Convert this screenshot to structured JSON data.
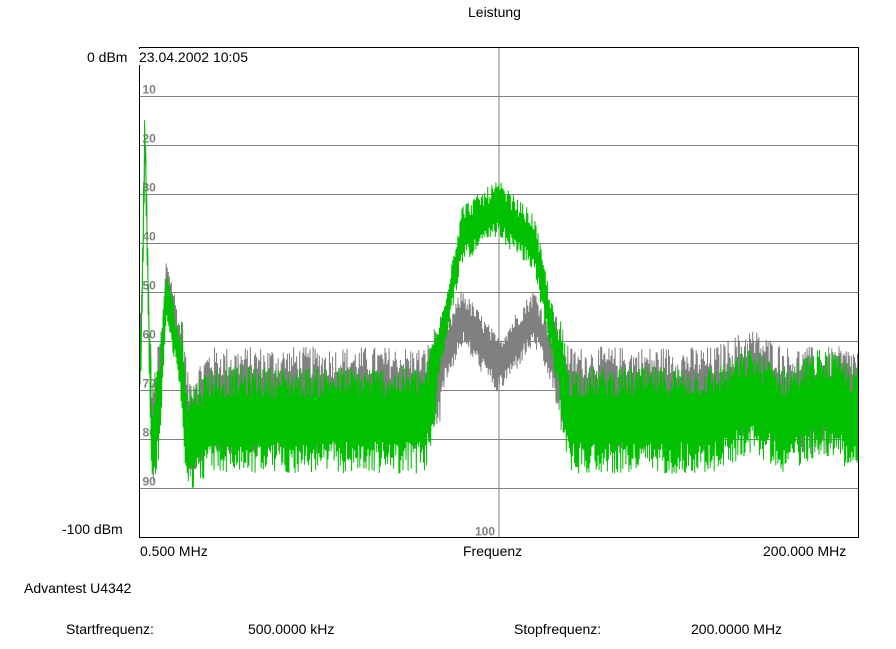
{
  "chart_data": {
    "type": "line",
    "title": "Leistung",
    "xlabel": "Frequenz",
    "ylabel": "",
    "x_start_label": "0.500 MHz",
    "x_end_label": "200.000 MHz",
    "xlim": [
      0.5,
      200.0
    ],
    "x_unit": "MHz",
    "ylim": [
      -100,
      0
    ],
    "y_unit": "dBm",
    "y_top_label": "0 dBm",
    "y_bottom_label": "-100 dBm",
    "timestamp": "23.04.2002 10:05",
    "y_tick_labels": [
      "10",
      "20",
      "30",
      "40",
      "50",
      "60",
      "70",
      "80",
      "90"
    ],
    "center_tick_label": "100",
    "grid": true,
    "series": [
      {
        "color": "#808080",
        "x": [
          0.5,
          1.0,
          2.0,
          3.0,
          4.0,
          6.0,
          8.0,
          10.0,
          12.0,
          14.0,
          20.0,
          40.0,
          60.0,
          80.0,
          90.0,
          100.0,
          110.0,
          120.0,
          140.0,
          160.0,
          170.0,
          180.0,
          190.0,
          200.0
        ],
        "values": [
          -60,
          -58,
          -18,
          -52,
          -80,
          -70,
          -48,
          -55,
          -63,
          -78,
          -72,
          -72,
          -72,
          -72,
          -55,
          -65,
          -55,
          -72,
          -72,
          -72,
          -68,
          -72,
          -72,
          -72
        ]
      },
      {
        "color": "#00c000",
        "x": [
          0.5,
          1.0,
          2.0,
          3.0,
          4.0,
          6.0,
          8.0,
          10.0,
          12.0,
          14.0,
          20.0,
          40.0,
          60.0,
          80.0,
          90.0,
          100.0,
          110.0,
          120.0,
          140.0,
          160.0,
          170.0,
          180.0,
          190.0,
          200.0
        ],
        "values": [
          -65,
          -60,
          -16,
          -55,
          -83,
          -72,
          -50,
          -58,
          -65,
          -80,
          -76,
          -76,
          -76,
          -76,
          -38,
          -33,
          -40,
          -76,
          -76,
          -76,
          -72,
          -76,
          -72,
          -76
        ]
      }
    ]
  },
  "footer": {
    "instrument": "Advantest U4342",
    "start_label": "Startfrequenz:",
    "start_value": "500.0000 kHz",
    "stop_label": "Stopfrequenz:",
    "stop_value": "200.0000 MHz"
  }
}
